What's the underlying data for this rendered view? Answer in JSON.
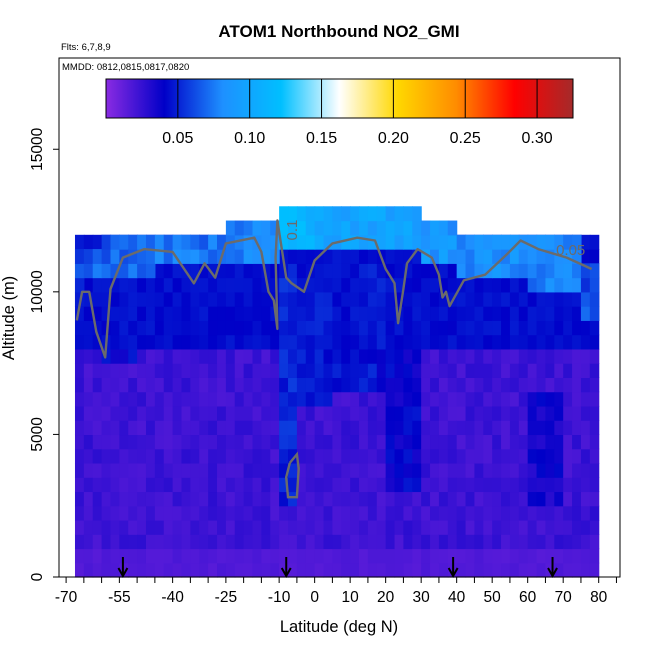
{
  "chart_data": {
    "type": "heatmap",
    "title": "ATOM1 Northbound NO2_GMI",
    "subtitle_flights": "Flts: 6,7,8,9",
    "subtitle_dates": "MMDD: 0812,0815,0817,0820",
    "xlabel": "Latitude (deg N)",
    "ylabel": "Altitude (m)",
    "xlim": [
      -70,
      85
    ],
    "ylim": [
      0,
      18500
    ],
    "x_ticks": [
      -70,
      -55,
      -40,
      -25,
      -10,
      0,
      10,
      20,
      30,
      40,
      50,
      60,
      70,
      80
    ],
    "x_tick_labels": [
      "-70",
      "-55",
      "-40",
      "-25",
      "-10",
      "0",
      "10",
      "20",
      "30",
      "40",
      "50",
      "60",
      "70",
      "80"
    ],
    "x_minor_ticks": [
      -65,
      -60,
      -50,
      -45,
      -35,
      -30,
      -20,
      -15,
      -5,
      5,
      15,
      25,
      35,
      45,
      55,
      65,
      75,
      85
    ],
    "y_ticks": [
      0,
      5000,
      10000,
      15000
    ],
    "y_tick_labels": [
      "0",
      "5000",
      "10000",
      "15000"
    ],
    "colorbar": {
      "range": [
        0,
        0.325
      ],
      "ticks": [
        0.05,
        0.1,
        0.15,
        0.2,
        0.25,
        0.3
      ],
      "tick_labels": [
        "0.05",
        "0.10",
        "0.15",
        "0.20",
        "0.25",
        "0.30"
      ],
      "colors": [
        "#8a2be2",
        "#0000c8",
        "#1e90ff",
        "#00bfff",
        "#ffffff",
        "#ffd700",
        "#ff8c00",
        "#ff0000",
        "#a52a2a"
      ]
    },
    "field": {
      "lat_start": -67.5,
      "lat_end": 80,
      "lat_step": 2.5,
      "alt_step": 500,
      "alt_rows": 24,
      "top_cells": [
        {
          "lat": [
            -67.5,
            -65
          ],
          "alt": [
            9500,
            11500
          ],
          "value": 0.06
        },
        {
          "lat": [
            -65,
            -60
          ],
          "alt": [
            10500,
            11500
          ],
          "value": 0.07
        },
        {
          "lat": [
            -60,
            -45
          ],
          "alt": [
            10500,
            12000
          ],
          "value": 0.07
        },
        {
          "lat": [
            -45,
            -25
          ],
          "alt": [
            11000,
            12000
          ],
          "value": 0.075
        },
        {
          "lat": [
            -25,
            -10
          ],
          "alt": [
            11000,
            12500
          ],
          "value": 0.08
        },
        {
          "lat": [
            -10,
            0
          ],
          "alt": [
            11500,
            13000
          ],
          "value": 0.115
        },
        {
          "lat": [
            0,
            30
          ],
          "alt": [
            11500,
            13000
          ],
          "value": 0.1
        },
        {
          "lat": [
            30,
            40
          ],
          "alt": [
            11000,
            12500
          ],
          "value": 0.09
        },
        {
          "lat": [
            40,
            60
          ],
          "alt": [
            10500,
            12000
          ],
          "value": 0.085
        },
        {
          "lat": [
            60,
            75
          ],
          "alt": [
            10000,
            12000
          ],
          "value": 0.08
        },
        {
          "lat": [
            75,
            80
          ],
          "alt": [
            9000,
            11000
          ],
          "value": 0.065
        }
      ],
      "high_columns": [
        {
          "lat": [
            -10,
            -5
          ],
          "alt": [
            2500,
            11000
          ],
          "value": 0.055
        },
        {
          "lat": [
            -5,
            5
          ],
          "alt": [
            6000,
            10500
          ],
          "value": 0.05
        },
        {
          "lat": [
            5,
            20
          ],
          "alt": [
            6500,
            11000
          ],
          "value": 0.05
        },
        {
          "lat": [
            20,
            30
          ],
          "alt": [
            3000,
            8000
          ],
          "value": 0.045
        },
        {
          "lat": [
            -60,
            -50
          ],
          "alt": [
            7500,
            11000
          ],
          "value": 0.045
        },
        {
          "lat": [
            60,
            70
          ],
          "alt": [
            2500,
            6500
          ],
          "value": 0.04
        }
      ]
    },
    "contours": [
      {
        "label": "0.05",
        "label_lat": 68,
        "label_alt": 11300
      },
      {
        "label": "0.1",
        "label_lat": -5,
        "label_alt": 11800
      }
    ],
    "flight_markers_lat": [
      -54,
      -8,
      39,
      67
    ]
  }
}
